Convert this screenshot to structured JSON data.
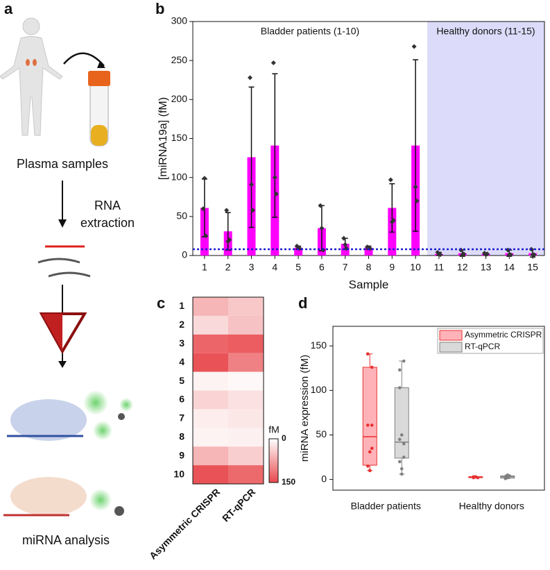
{
  "diagram": {
    "panel": "a",
    "steps": [
      "Plasma samples",
      "RNA",
      "extraction",
      "miRNA analysis"
    ]
  },
  "chart_data": [
    {
      "type": "bar",
      "panel": "b",
      "x_label": "Sample",
      "y_label": "[miRNA19a] (fM)",
      "categories": [
        "1",
        "2",
        "3",
        "4",
        "5",
        "6",
        "7",
        "8",
        "9",
        "10",
        "11",
        "12",
        "13",
        "14",
        "15"
      ],
      "values": [
        61,
        31,
        126,
        141,
        10,
        35,
        15,
        10,
        61,
        141,
        2,
        3,
        2,
        3,
        3
      ],
      "errors": [
        37,
        24,
        90,
        92,
        2,
        29,
        7,
        2,
        31,
        110,
        2,
        4,
        1,
        4,
        5
      ],
      "points": [
        [
          60,
          99,
          25
        ],
        [
          58,
          18,
          20
        ],
        [
          228,
          91,
          58
        ],
        [
          247,
          100,
          79
        ],
        [
          12,
          10,
          9
        ],
        [
          64,
          35,
          7
        ],
        [
          22,
          14,
          9
        ],
        [
          11,
          10,
          9
        ],
        [
          97,
          43,
          45
        ],
        [
          268,
          88,
          70
        ],
        [
          4,
          2,
          1
        ],
        [
          7,
          1,
          2
        ],
        [
          3,
          1,
          2
        ],
        [
          7,
          1,
          1
        ],
        [
          8,
          1,
          1
        ]
      ],
      "color": "#ff00ff",
      "threshold": 8,
      "threshold_color": "#1a1acc",
      "regions": [
        {
          "label": "Bladder patients (1-10)",
          "from": "1",
          "to": "10"
        },
        {
          "label": "Healthy donors (11-15)",
          "from": "11",
          "to": "15",
          "shade": "#dcdcfa"
        }
      ],
      "ylim": [
        0,
        300
      ],
      "yticks": [
        0,
        50,
        100,
        150,
        200,
        250,
        300
      ]
    },
    {
      "type": "heatmap",
      "panel": "c",
      "rows": [
        "1",
        "2",
        "3",
        "4",
        "5",
        "6",
        "7",
        "8",
        "9",
        "10"
      ],
      "columns": [
        "Asymmetric CRISPR",
        "RT-qPCR"
      ],
      "values": [
        [
          61,
          45
        ],
        [
          31,
          50
        ],
        [
          126,
          133
        ],
        [
          141,
          103
        ],
        [
          10,
          6
        ],
        [
          35,
          25
        ],
        [
          15,
          20
        ],
        [
          10,
          12
        ],
        [
          61,
          40
        ],
        [
          141,
          123
        ]
      ],
      "clim": [
        0,
        150
      ],
      "cticks": [
        0,
        150
      ],
      "colorbar_label": "fM",
      "cmap": [
        "#ffffff",
        "#e8484c"
      ]
    },
    {
      "type": "box",
      "panel": "d",
      "y_label": "miRNA expression (fM)",
      "categories": [
        "Bladder patients",
        "Healthy donors"
      ],
      "series": [
        {
          "name": "Asymmetric CRISPR",
          "color": "#e83030",
          "fill": "#ffb3b8",
          "boxes": [
            {
              "min": 10,
              "q1": 16,
              "median": 48,
              "q3": 126,
              "max": 141,
              "points": [
                61,
                31,
                126,
                141,
                10,
                35,
                15,
                10,
                61,
                141
              ]
            },
            {
              "min": 2,
              "q1": 2,
              "median": 3,
              "q3": 3,
              "max": 3,
              "points": [
                2,
                3,
                2,
                3,
                3
              ]
            }
          ]
        },
        {
          "name": "RT-qPCR",
          "color": "#808080",
          "fill": "#d9d9d9",
          "boxes": [
            {
              "min": 6,
              "q1": 24,
              "median": 42,
              "q3": 103,
              "max": 133,
              "points": [
                45,
                50,
                133,
                103,
                6,
                25,
                20,
                12,
                40,
                123
              ]
            },
            {
              "min": 1,
              "q1": 1.5,
              "median": 3,
              "q3": 4,
              "max": 5,
              "points": [
                1,
                2,
                4,
                3,
                5
              ]
            }
          ]
        }
      ],
      "ylim": [
        -12,
        172
      ],
      "yticks": [
        0,
        50,
        100,
        150
      ]
    }
  ]
}
